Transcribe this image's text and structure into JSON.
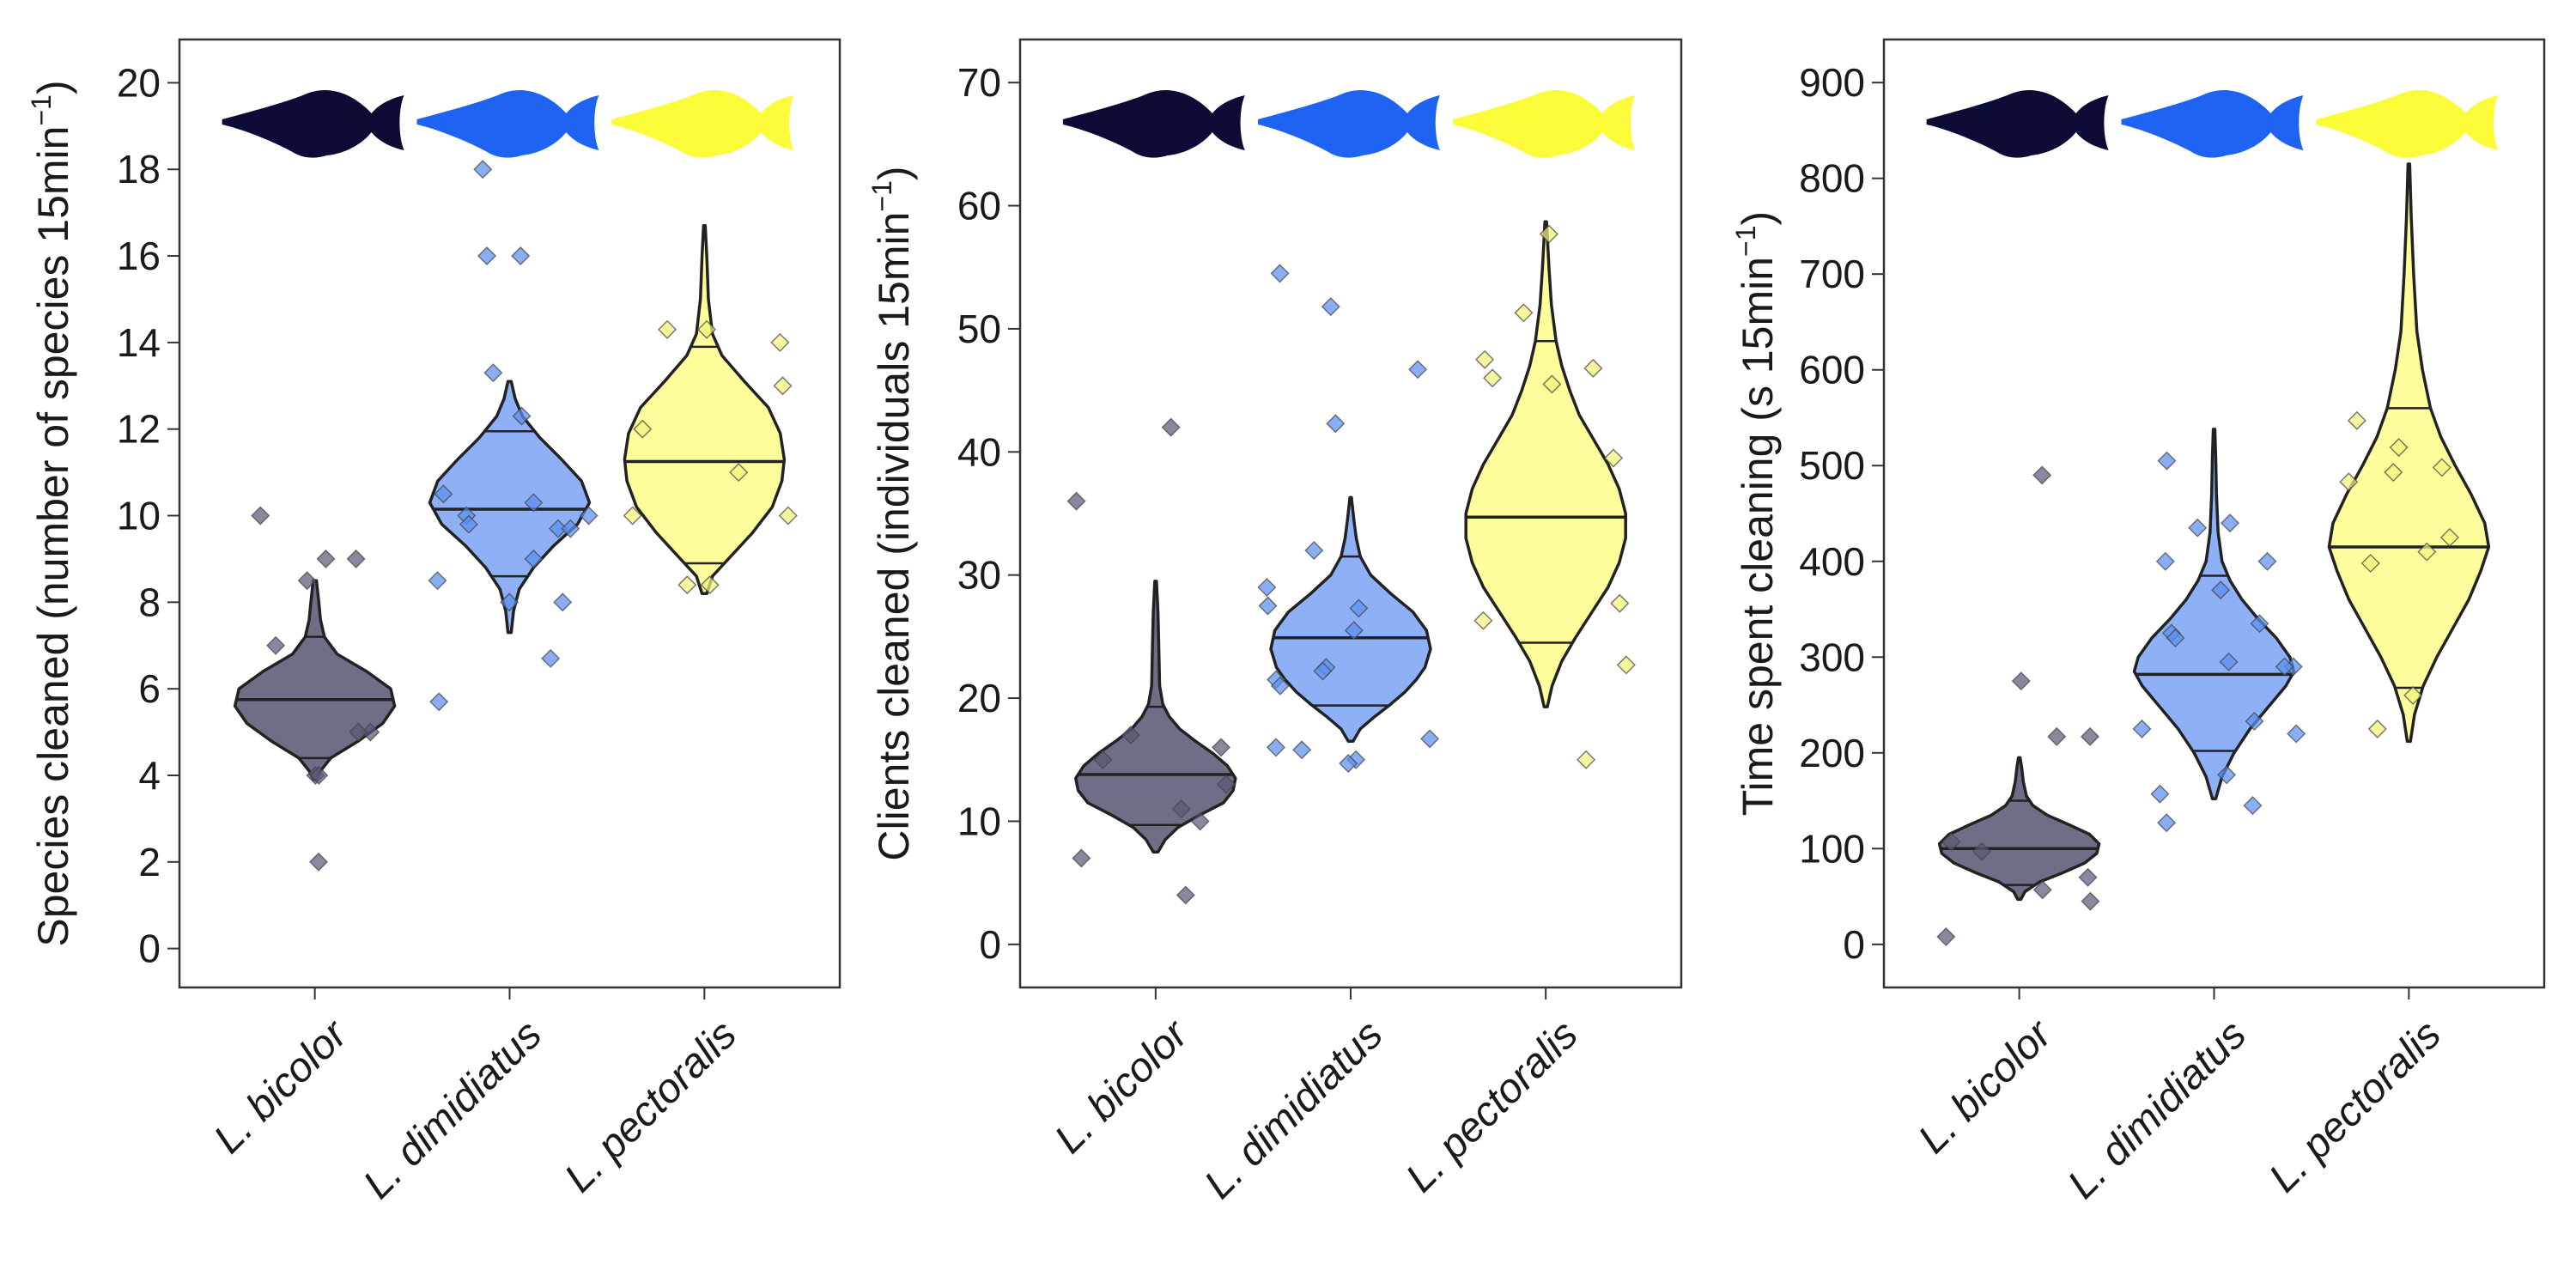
{
  "figure": {
    "panel_count": 3
  },
  "species": [
    {
      "key": "bicolor",
      "label": "L. bicolor",
      "color": "#0b0b35",
      "fill": "#6e6e87",
      "point": "#5a5a78"
    },
    {
      "key": "dimidiatus",
      "label": "L. dimidiatus",
      "color": "#1f63f2",
      "fill": "#8eb0f7",
      "point": "#5b8ff0"
    },
    {
      "key": "pectoralis",
      "label": "L. pectoralis",
      "color": "#fbfb3a",
      "fill": "#fdfd9c",
      "point": "#f3f37a"
    }
  ],
  "chart_data": [
    {
      "type": "violin",
      "ylabel": "Species cleaned (number of species 15min",
      "ylabel_sup": "−1",
      "ylabel_end": ")",
      "ylim": [
        -0.9,
        21.0
      ],
      "yticks": [
        0,
        2,
        4,
        6,
        8,
        10,
        12,
        14,
        16,
        18,
        20
      ],
      "categories": [
        "L. bicolor",
        "L. dimidiatus",
        "L. pectoralis"
      ],
      "series": [
        {
          "name": "L. bicolor",
          "violin": {
            "ymin": 3.9,
            "ymax": 8.5,
            "profile": [
              [
                3.9,
                0.02
              ],
              [
                4.1,
                0.07
              ],
              [
                4.4,
                0.2
              ],
              [
                4.8,
                0.55
              ],
              [
                5.2,
                0.85
              ],
              [
                5.6,
                1.0
              ],
              [
                6.0,
                0.95
              ],
              [
                6.4,
                0.65
              ],
              [
                6.8,
                0.28
              ],
              [
                7.2,
                0.12
              ],
              [
                7.6,
                0.07
              ],
              [
                8.0,
                0.05
              ],
              [
                8.5,
                0.02
              ]
            ]
          },
          "quantiles": [
            4.4,
            5.75,
            7.2
          ],
          "points": [
            10.0,
            9.0,
            9.0,
            8.5,
            7.0,
            5.0,
            5.0,
            4.0,
            4.0,
            2.0
          ]
        },
        {
          "name": "L. dimidiatus",
          "violin": {
            "ymin": 7.3,
            "ymax": 13.1,
            "profile": [
              [
                7.3,
                0.02
              ],
              [
                7.8,
                0.05
              ],
              [
                8.3,
                0.12
              ],
              [
                8.8,
                0.3
              ],
              [
                9.3,
                0.55
              ],
              [
                9.8,
                0.85
              ],
              [
                10.3,
                1.0
              ],
              [
                10.8,
                0.9
              ],
              [
                11.3,
                0.65
              ],
              [
                11.8,
                0.38
              ],
              [
                12.3,
                0.16
              ],
              [
                12.7,
                0.07
              ],
              [
                13.1,
                0.02
              ]
            ]
          },
          "quantiles": [
            8.6,
            10.15,
            11.95
          ],
          "points": [
            18.0,
            16.0,
            16.0,
            13.3,
            12.3,
            10.5,
            10.3,
            10.0,
            10.0,
            9.8,
            9.7,
            9.7,
            9.0,
            8.5,
            8.0,
            8.0,
            6.7,
            5.7
          ]
        },
        {
          "name": "L. pectoralis",
          "violin": {
            "ymin": 8.2,
            "ymax": 16.7,
            "profile": [
              [
                8.2,
                0.03
              ],
              [
                8.6,
                0.1
              ],
              [
                9.1,
                0.35
              ],
              [
                9.6,
                0.6
              ],
              [
                10.2,
                0.85
              ],
              [
                10.8,
                0.97
              ],
              [
                11.3,
                1.0
              ],
              [
                11.9,
                0.95
              ],
              [
                12.5,
                0.8
              ],
              [
                13.1,
                0.5
              ],
              [
                13.7,
                0.22
              ],
              [
                14.2,
                0.1
              ],
              [
                15.0,
                0.05
              ],
              [
                16.0,
                0.03
              ],
              [
                16.7,
                0.01
              ]
            ]
          },
          "quantiles": [
            8.9,
            11.25,
            13.9
          ],
          "points": [
            14.3,
            14.3,
            14.0,
            13.0,
            12.0,
            11.0,
            10.0,
            10.0,
            8.4,
            8.4
          ]
        }
      ]
    },
    {
      "type": "violin",
      "ylabel": "Clients cleaned (individuals 15min",
      "ylabel_sup": "−1",
      "ylabel_end": ")",
      "ylim": [
        -3.5,
        73.5
      ],
      "yticks": [
        0,
        10,
        20,
        30,
        40,
        50,
        60,
        70
      ],
      "categories": [
        "L. bicolor",
        "L. dimidiatus",
        "L. pectoralis"
      ],
      "series": [
        {
          "name": "L. bicolor",
          "violin": {
            "ymin": 7.5,
            "ymax": 29.5,
            "profile": [
              [
                7.5,
                0.03
              ],
              [
                8.5,
                0.12
              ],
              [
                9.5,
                0.28
              ],
              [
                10.5,
                0.55
              ],
              [
                11.5,
                0.85
              ],
              [
                12.5,
                0.97
              ],
              [
                13.5,
                1.0
              ],
              [
                14.5,
                0.9
              ],
              [
                15.5,
                0.72
              ],
              [
                16.5,
                0.5
              ],
              [
                17.5,
                0.3
              ],
              [
                18.5,
                0.17
              ],
              [
                19.5,
                0.09
              ],
              [
                21.0,
                0.05
              ],
              [
                24.0,
                0.04
              ],
              [
                27.0,
                0.03
              ],
              [
                29.5,
                0.01
              ]
            ]
          },
          "quantiles": [
            9.7,
            13.8,
            19.3
          ],
          "points": [
            42.0,
            36.0,
            17.0,
            16.0,
            15.0,
            13.0,
            11.0,
            10.0,
            7.0,
            4.0
          ]
        },
        {
          "name": "L. dimidiatus",
          "violin": {
            "ymin": 16.5,
            "ymax": 36.3,
            "profile": [
              [
                16.5,
                0.03
              ],
              [
                17.5,
                0.12
              ],
              [
                18.5,
                0.3
              ],
              [
                19.5,
                0.5
              ],
              [
                20.5,
                0.68
              ],
              [
                21.5,
                0.82
              ],
              [
                22.5,
                0.93
              ],
              [
                24.0,
                1.0
              ],
              [
                25.5,
                0.95
              ],
              [
                27.0,
                0.78
              ],
              [
                28.5,
                0.5
              ],
              [
                30.0,
                0.25
              ],
              [
                31.5,
                0.12
              ],
              [
                33.0,
                0.07
              ],
              [
                34.5,
                0.04
              ],
              [
                36.3,
                0.01
              ]
            ]
          },
          "quantiles": [
            19.4,
            24.9,
            31.5
          ],
          "points": [
            54.5,
            51.8,
            46.7,
            42.3,
            32.0,
            29.0,
            27.5,
            27.3,
            25.5,
            22.5,
            22.2,
            21.5,
            21.0,
            16.7,
            16.0,
            15.8,
            15.0,
            14.7
          ]
        },
        {
          "name": "L. pectoralis",
          "violin": {
            "ymin": 19.3,
            "ymax": 58.7,
            "profile": [
              [
                19.3,
                0.02
              ],
              [
                21.0,
                0.08
              ],
              [
                23.0,
                0.2
              ],
              [
                25.0,
                0.38
              ],
              [
                27.0,
                0.58
              ],
              [
                29.0,
                0.78
              ],
              [
                31.0,
                0.92
              ],
              [
                33.0,
                1.0
              ],
              [
                35.0,
                1.0
              ],
              [
                37.0,
                0.92
              ],
              [
                39.0,
                0.78
              ],
              [
                41.0,
                0.6
              ],
              [
                43.0,
                0.42
              ],
              [
                45.0,
                0.3
              ],
              [
                47.0,
                0.2
              ],
              [
                49.0,
                0.13
              ],
              [
                52.0,
                0.07
              ],
              [
                55.0,
                0.04
              ],
              [
                58.7,
                0.01
              ]
            ]
          },
          "quantiles": [
            24.5,
            34.7,
            49.0
          ],
          "points": [
            57.7,
            51.3,
            47.5,
            46.8,
            46.0,
            45.5,
            39.5,
            27.7,
            26.3,
            22.7,
            15.0
          ]
        }
      ]
    },
    {
      "type": "violin",
      "ylabel": "Time spent cleaning (s 15min",
      "ylabel_sup": "−1",
      "ylabel_end": ")",
      "ylim": [
        -45,
        945
      ],
      "yticks": [
        0,
        100,
        200,
        300,
        400,
        500,
        600,
        700,
        800,
        900
      ],
      "categories": [
        "L. bicolor",
        "L. dimidiatus",
        "L. pectoralis"
      ],
      "series": [
        {
          "name": "L. bicolor",
          "violin": {
            "ymin": 47,
            "ymax": 195,
            "profile": [
              [
                47,
                0.02
              ],
              [
                55,
                0.07
              ],
              [
                65,
                0.25
              ],
              [
                75,
                0.55
              ],
              [
                85,
                0.82
              ],
              [
                95,
                0.97
              ],
              [
                105,
                1.0
              ],
              [
                115,
                0.88
              ],
              [
                125,
                0.62
              ],
              [
                135,
                0.35
              ],
              [
                145,
                0.17
              ],
              [
                155,
                0.09
              ],
              [
                170,
                0.05
              ],
              [
                185,
                0.03
              ],
              [
                195,
                0.01
              ]
            ]
          },
          "quantiles": [
            62,
            100,
            150
          ],
          "points": [
            490,
            275,
            217,
            217,
            107,
            97,
            70,
            57,
            45,
            8
          ]
        },
        {
          "name": "L. dimidiatus",
          "violin": {
            "ymin": 152,
            "ymax": 538,
            "profile": [
              [
                152,
                0.02
              ],
              [
                175,
                0.1
              ],
              [
                200,
                0.25
              ],
              [
                225,
                0.45
              ],
              [
                250,
                0.7
              ],
              [
                270,
                0.9
              ],
              [
                285,
                1.0
              ],
              [
                300,
                0.95
              ],
              [
                320,
                0.78
              ],
              [
                340,
                0.55
              ],
              [
                360,
                0.35
              ],
              [
                380,
                0.2
              ],
              [
                400,
                0.1
              ],
              [
                430,
                0.05
              ],
              [
                470,
                0.03
              ],
              [
                510,
                0.02
              ],
              [
                538,
                0.01
              ]
            ]
          },
          "quantiles": [
            202,
            282,
            385
          ],
          "points": [
            505,
            440,
            435,
            400,
            400,
            370,
            335,
            325,
            320,
            295,
            290,
            290,
            233,
            225,
            220,
            177,
            157,
            145,
            127
          ]
        },
        {
          "name": "L. pectoralis",
          "violin": {
            "ymin": 212,
            "ymax": 815,
            "profile": [
              [
                212,
                0.02
              ],
              [
                240,
                0.07
              ],
              [
                270,
                0.18
              ],
              [
                300,
                0.35
              ],
              [
                330,
                0.55
              ],
              [
                360,
                0.75
              ],
              [
                390,
                0.9
              ],
              [
                415,
                1.0
              ],
              [
                440,
                0.95
              ],
              [
                470,
                0.78
              ],
              [
                500,
                0.58
              ],
              [
                530,
                0.4
              ],
              [
                560,
                0.27
              ],
              [
                600,
                0.17
              ],
              [
                640,
                0.1
              ],
              [
                700,
                0.06
              ],
              [
                760,
                0.03
              ],
              [
                815,
                0.01
              ]
            ]
          },
          "quantiles": [
            268,
            415,
            560
          ],
          "points": [
            547,
            519,
            498,
            493,
            483,
            425,
            410,
            398,
            260,
            225
          ]
        }
      ]
    }
  ]
}
